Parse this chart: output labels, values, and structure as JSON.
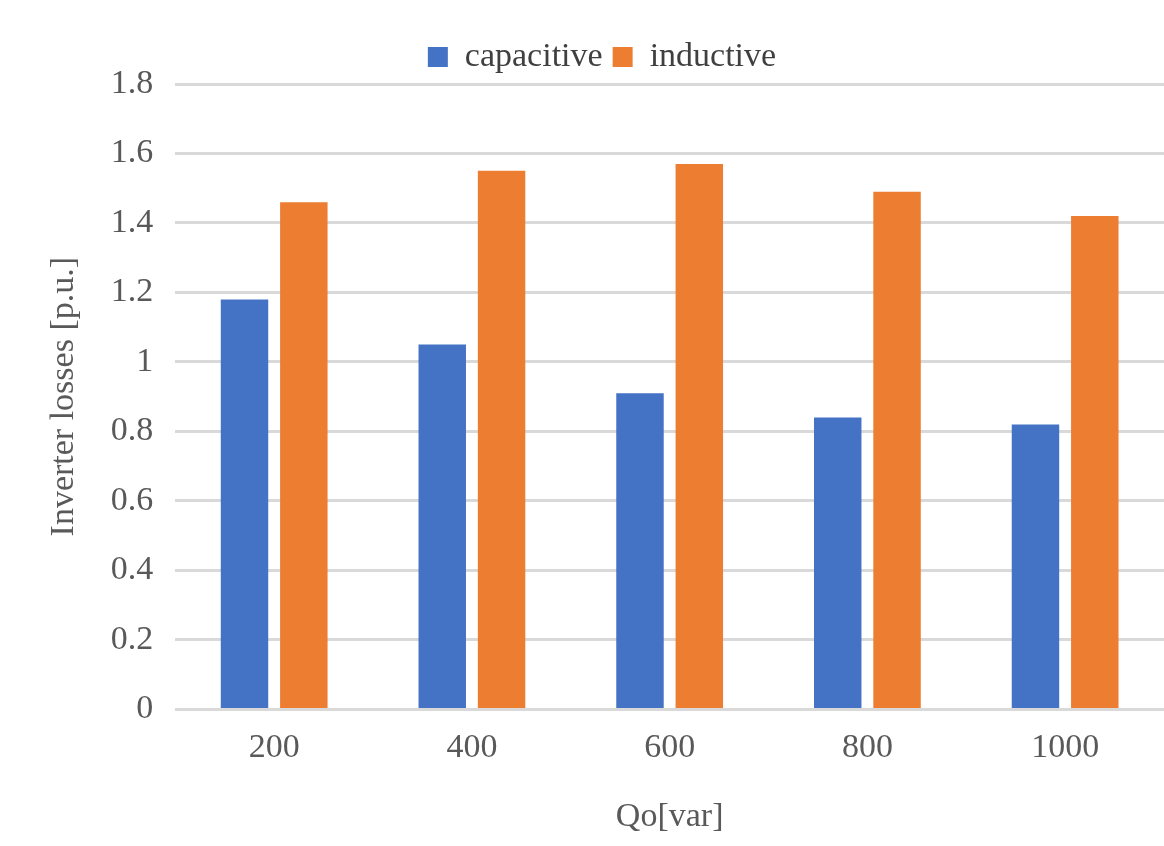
{
  "chart_data": {
    "type": "bar",
    "xlabel": "Qo[var]",
    "ylabel": "Inverter losses [p.u.]",
    "categories": [
      "200",
      "400",
      "600",
      "800",
      "1000"
    ],
    "series": [
      {
        "name": "capacitive",
        "color": "#4472c4",
        "values": [
          1.18,
          1.05,
          0.91,
          0.84,
          0.82
        ]
      },
      {
        "name": "inductive",
        "color": "#ed7d31",
        "values": [
          1.46,
          1.55,
          1.57,
          1.49,
          1.42
        ]
      }
    ],
    "ylim": [
      0,
      1.8
    ],
    "yticks": [
      0,
      0.2,
      0.4,
      0.6,
      0.8,
      1,
      1.2,
      1.4,
      1.6,
      1.8
    ],
    "grid": "y",
    "legend": "top"
  }
}
